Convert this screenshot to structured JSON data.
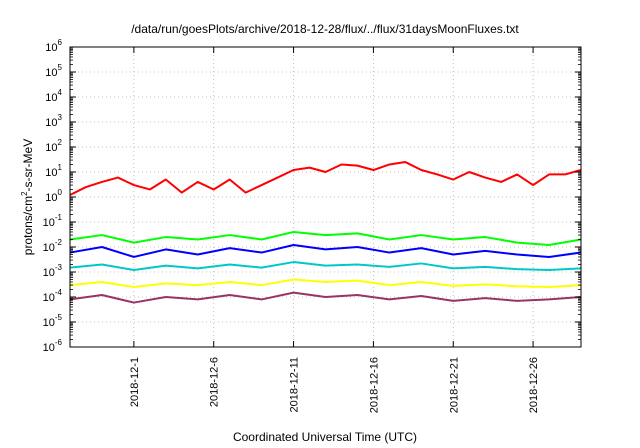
{
  "chart_data": {
    "type": "line",
    "title": "/data/run/goesPlots/archive/2018-12-28/flux/../flux/31daysMoonFluxes.txt",
    "xlabel": "Coordinated Universal Time (UTC)",
    "ylabel": {
      "base": "protons/cm",
      "sup": "2",
      "rest": "-s-sr-MeV"
    },
    "yscale": "log",
    "ylim": [
      1e-06,
      1000000.0
    ],
    "xlim": [
      "2018-11-27",
      "2018-12-29"
    ],
    "grid": true,
    "y_ticks": [
      {
        "value": 1e-06,
        "base": "10",
        "exp": "-6"
      },
      {
        "value": 1e-05,
        "base": "10",
        "exp": "-5"
      },
      {
        "value": 0.0001,
        "base": "10",
        "exp": "-4"
      },
      {
        "value": 0.001,
        "base": "10",
        "exp": "-3"
      },
      {
        "value": 0.01,
        "base": "10",
        "exp": "-2"
      },
      {
        "value": 0.1,
        "base": "10",
        "exp": "-1"
      },
      {
        "value": 1,
        "base": "10",
        "exp": "0"
      },
      {
        "value": 10,
        "base": "10",
        "exp": "1"
      },
      {
        "value": 100,
        "base": "10",
        "exp": "2"
      },
      {
        "value": 1000,
        "base": "10",
        "exp": "3"
      },
      {
        "value": 10000,
        "base": "10",
        "exp": "4"
      },
      {
        "value": 100000,
        "base": "10",
        "exp": "5"
      },
      {
        "value": 1000000,
        "base": "10",
        "exp": "6"
      }
    ],
    "x_ticks": [
      {
        "date": "2018-12-01",
        "label": "2018-12-1"
      },
      {
        "date": "2018-12-06",
        "label": "2018-12-6"
      },
      {
        "date": "2018-12-11",
        "label": "2018-12-11"
      },
      {
        "date": "2018-12-16",
        "label": "2018-12-16"
      },
      {
        "date": "2018-12-21",
        "label": "2018-12-21"
      },
      {
        "date": "2018-12-26",
        "label": "2018-12-26"
      }
    ],
    "series": [
      {
        "color": "#ff0000",
        "points": [
          [
            "2018-11-27",
            1.2
          ],
          [
            "2018-11-28",
            2.5
          ],
          [
            "2018-11-29",
            4
          ],
          [
            "2018-11-30",
            6
          ],
          [
            "2018-12-01",
            3
          ],
          [
            "2018-12-02",
            2
          ],
          [
            "2018-12-03",
            5
          ],
          [
            "2018-12-04",
            1.5
          ],
          [
            "2018-12-05",
            4
          ],
          [
            "2018-12-06",
            2
          ],
          [
            "2018-12-07",
            5
          ],
          [
            "2018-12-08",
            1.5
          ],
          [
            "2018-12-09",
            3
          ],
          [
            "2018-12-10",
            6
          ],
          [
            "2018-12-11",
            12
          ],
          [
            "2018-12-12",
            15
          ],
          [
            "2018-12-13",
            10
          ],
          [
            "2018-12-14",
            20
          ],
          [
            "2018-12-15",
            18
          ],
          [
            "2018-12-16",
            12
          ],
          [
            "2018-12-17",
            20
          ],
          [
            "2018-12-18",
            25
          ],
          [
            "2018-12-19",
            12
          ],
          [
            "2018-12-20",
            8
          ],
          [
            "2018-12-21",
            5
          ],
          [
            "2018-12-22",
            10
          ],
          [
            "2018-12-23",
            6
          ],
          [
            "2018-12-24",
            4
          ],
          [
            "2018-12-25",
            8
          ],
          [
            "2018-12-26",
            3
          ],
          [
            "2018-12-27",
            8
          ],
          [
            "2018-12-28",
            8
          ],
          [
            "2018-12-29",
            12
          ]
        ]
      },
      {
        "color": "#00ff00",
        "points": [
          [
            "2018-11-27",
            0.02
          ],
          [
            "2018-11-29",
            0.03
          ],
          [
            "2018-12-01",
            0.015
          ],
          [
            "2018-12-03",
            0.025
          ],
          [
            "2018-12-05",
            0.02
          ],
          [
            "2018-12-07",
            0.03
          ],
          [
            "2018-12-09",
            0.02
          ],
          [
            "2018-12-11",
            0.04
          ],
          [
            "2018-12-13",
            0.03
          ],
          [
            "2018-12-15",
            0.035
          ],
          [
            "2018-12-17",
            0.02
          ],
          [
            "2018-12-19",
            0.03
          ],
          [
            "2018-12-21",
            0.02
          ],
          [
            "2018-12-23",
            0.025
          ],
          [
            "2018-12-25",
            0.015
          ],
          [
            "2018-12-27",
            0.012
          ],
          [
            "2018-12-29",
            0.02
          ]
        ]
      },
      {
        "color": "#0000ff",
        "points": [
          [
            "2018-11-27",
            0.006
          ],
          [
            "2018-11-29",
            0.01
          ],
          [
            "2018-12-01",
            0.004
          ],
          [
            "2018-12-03",
            0.008
          ],
          [
            "2018-12-05",
            0.005
          ],
          [
            "2018-12-07",
            0.009
          ],
          [
            "2018-12-09",
            0.006
          ],
          [
            "2018-12-11",
            0.012
          ],
          [
            "2018-12-13",
            0.008
          ],
          [
            "2018-12-15",
            0.01
          ],
          [
            "2018-12-17",
            0.006
          ],
          [
            "2018-12-19",
            0.009
          ],
          [
            "2018-12-21",
            0.005
          ],
          [
            "2018-12-23",
            0.007
          ],
          [
            "2018-12-25",
            0.005
          ],
          [
            "2018-12-27",
            0.004
          ],
          [
            "2018-12-29",
            0.006
          ]
        ]
      },
      {
        "color": "#00c8c8",
        "points": [
          [
            "2018-11-27",
            0.0015
          ],
          [
            "2018-11-29",
            0.002
          ],
          [
            "2018-12-01",
            0.0012
          ],
          [
            "2018-12-03",
            0.0018
          ],
          [
            "2018-12-05",
            0.0014
          ],
          [
            "2018-12-07",
            0.002
          ],
          [
            "2018-12-09",
            0.0015
          ],
          [
            "2018-12-11",
            0.0025
          ],
          [
            "2018-12-13",
            0.0018
          ],
          [
            "2018-12-15",
            0.002
          ],
          [
            "2018-12-17",
            0.0016
          ],
          [
            "2018-12-19",
            0.0022
          ],
          [
            "2018-12-21",
            0.0014
          ],
          [
            "2018-12-23",
            0.0016
          ],
          [
            "2018-12-25",
            0.0013
          ],
          [
            "2018-12-27",
            0.0012
          ],
          [
            "2018-12-29",
            0.0014
          ]
        ]
      },
      {
        "color": "#ffff00",
        "points": [
          [
            "2018-11-27",
            0.0003
          ],
          [
            "2018-11-29",
            0.0004
          ],
          [
            "2018-12-01",
            0.00025
          ],
          [
            "2018-12-03",
            0.00035
          ],
          [
            "2018-12-05",
            0.0003
          ],
          [
            "2018-12-07",
            0.0004
          ],
          [
            "2018-12-09",
            0.0003
          ],
          [
            "2018-12-11",
            0.0005
          ],
          [
            "2018-12-13",
            0.0004
          ],
          [
            "2018-12-15",
            0.00045
          ],
          [
            "2018-12-17",
            0.0003
          ],
          [
            "2018-12-19",
            0.0004
          ],
          [
            "2018-12-21",
            0.00028
          ],
          [
            "2018-12-23",
            0.00032
          ],
          [
            "2018-12-25",
            0.00027
          ],
          [
            "2018-12-27",
            0.00025
          ],
          [
            "2018-12-29",
            0.0003
          ]
        ]
      },
      {
        "color": "#993366",
        "points": [
          [
            "2018-11-27",
            8e-05
          ],
          [
            "2018-11-29",
            0.00012
          ],
          [
            "2018-12-01",
            6e-05
          ],
          [
            "2018-12-03",
            0.0001
          ],
          [
            "2018-12-05",
            8e-05
          ],
          [
            "2018-12-07",
            0.00012
          ],
          [
            "2018-12-09",
            8e-05
          ],
          [
            "2018-12-11",
            0.00015
          ],
          [
            "2018-12-13",
            0.0001
          ],
          [
            "2018-12-15",
            0.00012
          ],
          [
            "2018-12-17",
            8e-05
          ],
          [
            "2018-12-19",
            0.00011
          ],
          [
            "2018-12-21",
            7e-05
          ],
          [
            "2018-12-23",
            9e-05
          ],
          [
            "2018-12-25",
            7e-05
          ],
          [
            "2018-12-27",
            8e-05
          ],
          [
            "2018-12-29",
            0.0001
          ]
        ]
      }
    ]
  }
}
